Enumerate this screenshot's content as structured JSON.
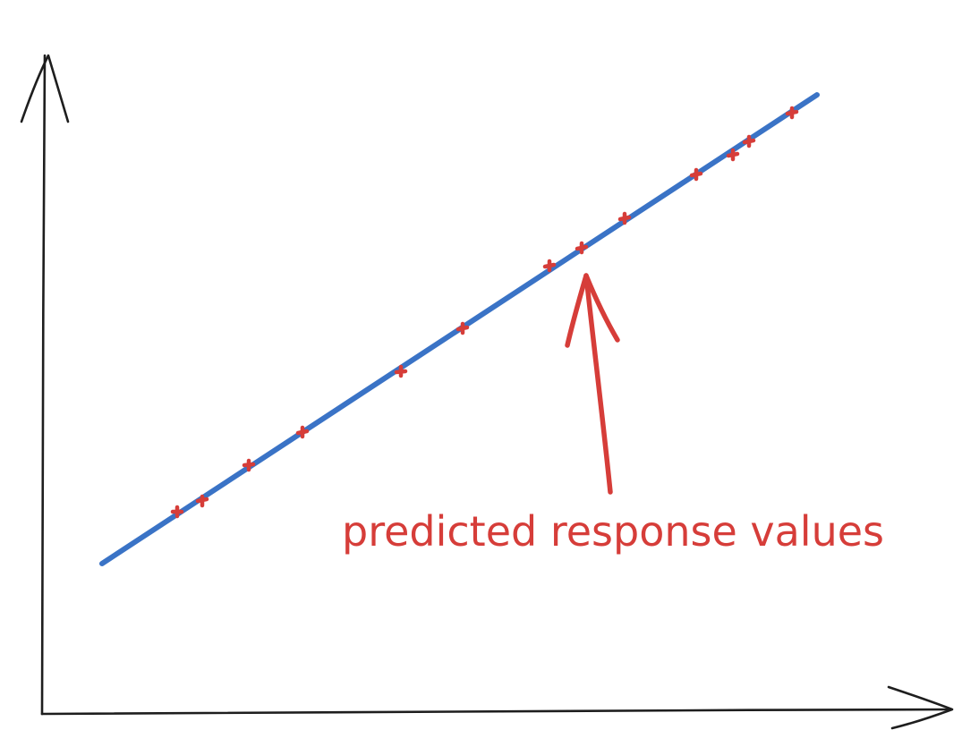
{
  "annotation": {
    "label": "predicted response values"
  },
  "colors": {
    "axis": "#1e1e1e",
    "fit_line": "#3a73c6",
    "points": "#d63d39",
    "annotation": "#d63d39",
    "background": "#ffffff"
  }
}
